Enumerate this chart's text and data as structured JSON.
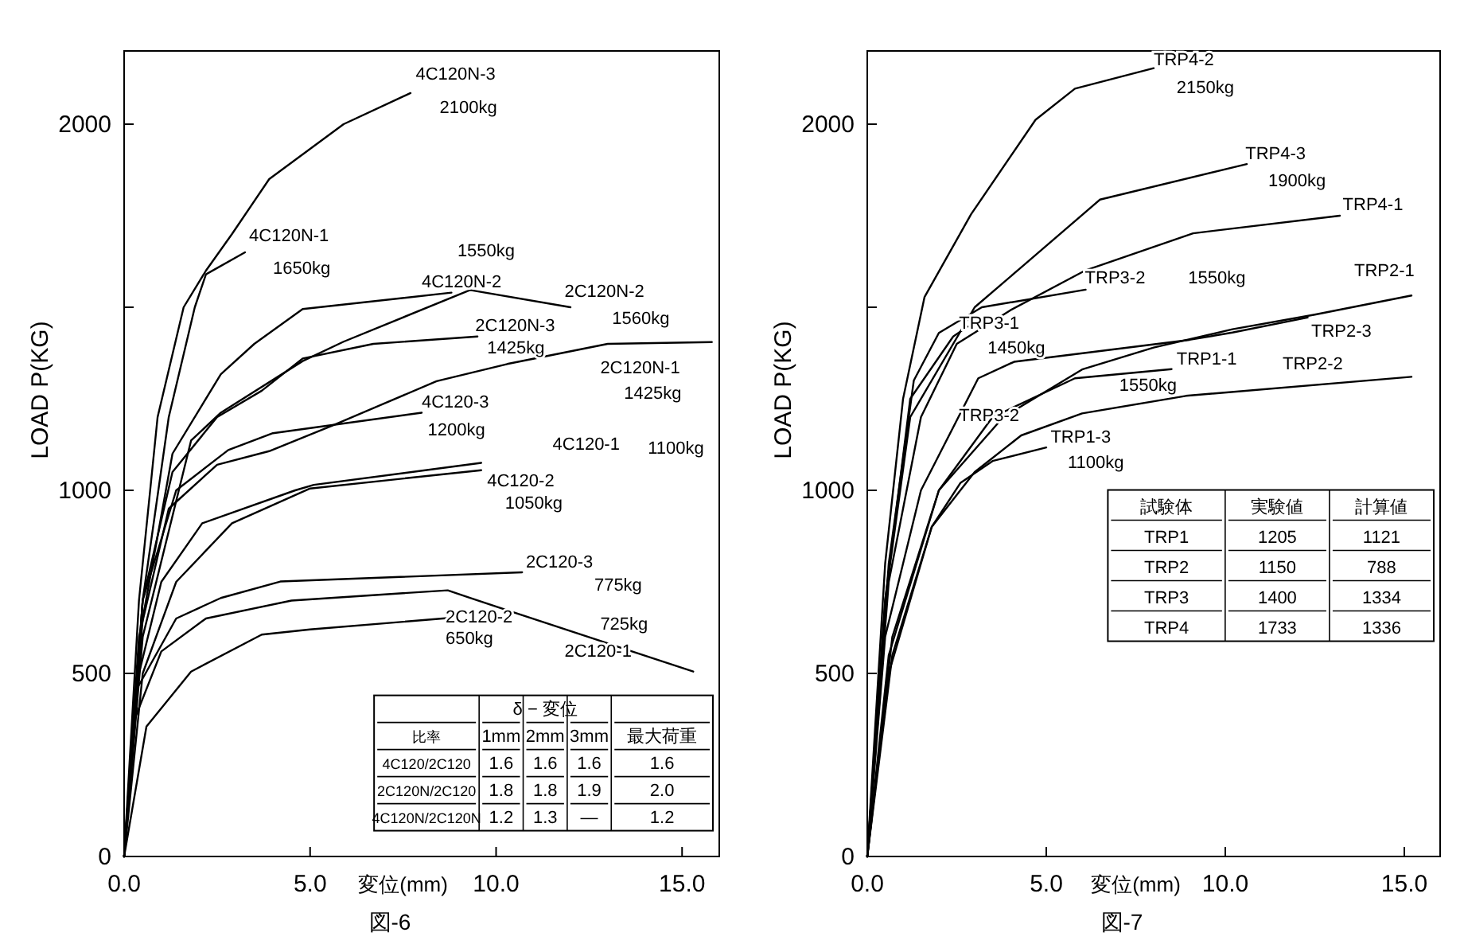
{
  "chart_data": [
    {
      "type": "line",
      "title": "図-6",
      "xlabel": "変位(mm)",
      "ylabel": "LOAD P(KG)",
      "xlim": [
        0,
        16
      ],
      "ylim": [
        0,
        2200
      ],
      "xticks": [
        {
          "value": 0,
          "label": "0.0"
        },
        {
          "value": 5,
          "label": "5.0"
        },
        {
          "value": 10,
          "label": "10.0"
        },
        {
          "value": 15,
          "label": "15.0"
        }
      ],
      "yticks": [
        0,
        500,
        1000,
        {
          "value": 1500,
          "label": null
        },
        2000
      ],
      "grid": false,
      "series": [
        {
          "color": "#000000",
          "x": [
            0,
            0.4,
            0.9,
            1.6,
            2.2,
            2.9,
            3.9,
            5.9,
            7.7
          ],
          "values": [
            0,
            700,
            1200,
            1500,
            1600,
            1700,
            1850,
            2000,
            2085
          ]
        },
        {
          "color": "#000000",
          "x": [
            0,
            0.5,
            1.2,
            1.9,
            2.2,
            3.25
          ],
          "values": [
            0,
            700,
            1200,
            1500,
            1590,
            1650
          ]
        },
        {
          "color": "#000000",
          "x": [
            0,
            0.5,
            1.3,
            2.6,
            3.5,
            4.8,
            8.8
          ],
          "values": [
            0,
            650,
            1100,
            1317,
            1400,
            1495,
            1540
          ]
        },
        {
          "color": "#000000",
          "x": [
            0,
            0.5,
            1.8,
            2.6,
            4.8,
            5.9,
            9.3,
            12.0
          ],
          "values": [
            0,
            600,
            1136,
            1212,
            1353,
            1406,
            1547,
            1500
          ]
        },
        {
          "color": "#000000",
          "x": [
            0,
            0.5,
            1.3,
            2.5,
            3.7,
            4.8,
            6.7,
            9.5
          ],
          "values": [
            0,
            700,
            1050,
            1200,
            1272,
            1360,
            1400,
            1420
          ]
        },
        {
          "color": "#000000",
          "x": [
            0,
            0.4,
            1.2,
            2.5,
            3.9,
            5.6,
            8.4,
            10.3,
            13.0,
            15.8
          ],
          "values": [
            0,
            600,
            950,
            1070,
            1107,
            1177,
            1298,
            1345,
            1400,
            1405
          ]
        },
        {
          "color": "#000000",
          "x": [
            0,
            0.5,
            1.4,
            2.8,
            4.0,
            8.0
          ],
          "values": [
            0,
            700,
            1000,
            1110,
            1156,
            1212
          ]
        },
        {
          "color": "#000000",
          "x": [
            0,
            0.4,
            1.0,
            2.1,
            4.6,
            5.1,
            9.6
          ],
          "values": [
            0,
            500,
            750,
            910,
            1000,
            1015,
            1075
          ]
        },
        {
          "color": "#000000",
          "x": [
            0,
            0.5,
            1.4,
            2.9,
            5.0,
            9.6
          ],
          "values": [
            0,
            500,
            750,
            910,
            1005,
            1055
          ]
        },
        {
          "color": "#000000",
          "x": [
            0,
            0.3,
            1.4,
            2.6,
            4.2,
            10.7
          ],
          "values": [
            0,
            450,
            650,
            706,
            751,
            776
          ]
        },
        {
          "color": "#000000",
          "x": [
            0,
            0.3,
            1.0,
            2.2,
            4.5,
            8.7,
            9.3,
            15.3
          ],
          "values": [
            0,
            380,
            560,
            650,
            699,
            727,
            706,
            505
          ]
        },
        {
          "color": "#000000",
          "x": [
            0,
            0.6,
            1.8,
            3.7,
            5.0,
            8.7
          ],
          "values": [
            0,
            355,
            505,
            606,
            620,
            651
          ]
        }
      ],
      "annotations": [
        "4C120N-3",
        "2100kg",
        "4C120N-1",
        "1650kg",
        "1550kg",
        "4C120N-2",
        "2C120N-2",
        "1560kg",
        "2C120N-3",
        "1425kg",
        "2C120N-1",
        "1425kg",
        "4C120-3",
        "1200kg",
        "4C120-1",
        "1100kg",
        "4C120-2",
        "1050kg",
        "2C120-3",
        "775kg",
        "2C120-2",
        "650kg",
        "725kg",
        "2C120-1",
        "δ − 変位",
        "比率",
        "1mm",
        "2mm",
        "3mm",
        "最大荷重",
        "4C120/2C120",
        "1.6",
        "1.6",
        "1.6",
        "1.6",
        "2C120N/2C120",
        "1.8",
        "1.8",
        "1.9",
        "2.0",
        "4C120N/2C120N",
        "1.2",
        "1.3",
        "—",
        "1.2"
      ]
    },
    {
      "type": "line",
      "title": "図-7",
      "xlabel": "変位(mm)",
      "ylabel": "LOAD P(KG)",
      "xlim": [
        0,
        16
      ],
      "ylim": [
        0,
        2200
      ],
      "xticks": [
        {
          "value": 0,
          "label": "0.0"
        },
        {
          "value": 5,
          "label": "5.0"
        },
        {
          "value": 10,
          "label": "10.0"
        },
        {
          "value": 15,
          "label": "15.0"
        }
      ],
      "yticks": [
        0,
        500,
        1000,
        {
          "value": 1500,
          "label": null
        },
        2000
      ],
      "grid": false,
      "series": [
        {
          "color": "#000000",
          "x": [
            0,
            0.5,
            1.0,
            1.6,
            2.9,
            4.7,
            5.8,
            8.0
          ],
          "values": [
            0,
            800,
            1250,
            1528,
            1754,
            2012,
            2097,
            2153
          ]
        },
        {
          "color": "#000000",
          "x": [
            0,
            0.5,
            1.2,
            3.0,
            4.3,
            6.5,
            10.6
          ],
          "values": [
            0,
            700,
            1200,
            1500,
            1609,
            1794,
            1891
          ]
        },
        {
          "color": "#000000",
          "x": [
            0,
            0.6,
            1.5,
            2.5,
            4.0,
            6.1,
            9.1,
            13.2
          ],
          "values": [
            0,
            750,
            1200,
            1400,
            1492,
            1601,
            1702,
            1750
          ]
        },
        {
          "color": "#000000",
          "x": [
            0,
            0.6,
            1.3,
            2.0,
            3.2,
            6.1
          ],
          "values": [
            0,
            800,
            1300,
            1430,
            1500,
            1548
          ]
        },
        {
          "color": "#000000",
          "x": [
            0,
            0.5,
            1.2,
            2.4,
            2.8
          ],
          "values": [
            0,
            700,
            1250,
            1420,
            1447
          ]
        },
        {
          "color": "#000000",
          "x": [
            0,
            0.5,
            1.5,
            3.1,
            4.1,
            9.0,
            10.2,
            12.3
          ],
          "values": [
            0,
            600,
            1000,
            1306,
            1351,
            1411,
            1431,
            1472
          ]
        },
        {
          "color": "#000000",
          "x": [
            0,
            0.6,
            2.0,
            3.8,
            6.0,
            8.0,
            10.2,
            12.5,
            15.2
          ],
          "values": [
            0,
            550,
            1000,
            1200,
            1330,
            1390,
            1440,
            1480,
            1532
          ]
        },
        {
          "color": "#000000",
          "x": [
            0,
            0.6,
            1.8,
            3.0,
            4.3,
            6.0,
            8.9,
            15.2
          ],
          "values": [
            0,
            500,
            900,
            1050,
            1150,
            1210,
            1258,
            1310
          ]
        },
        {
          "color": "#000000",
          "x": [
            0,
            0.7,
            2.0,
            3.5,
            5.8,
            8.5
          ],
          "values": [
            0,
            600,
            1000,
            1200,
            1306,
            1331
          ]
        },
        {
          "color": "#000000",
          "x": [
            0,
            0.7,
            1.8,
            2.6,
            3.5,
            5.0
          ],
          "values": [
            0,
            550,
            900,
            1020,
            1080,
            1117
          ]
        }
      ],
      "annotations": [
        "TRP4-2",
        "2150kg",
        "TRP4-3",
        "1900kg",
        "TRP4-1",
        "TRP3-2",
        "1550kg",
        "TRP3-1",
        "1450kg",
        "TRP2-1",
        "TRP2-3",
        "TRP2-2",
        "TRP1-1",
        "1550kg",
        "TRP3-2",
        "TRP1-3",
        "1100kg",
        "試験体",
        "実験値",
        "計算値",
        "TRP1",
        "1205",
        "1121",
        "TRP2",
        "1150",
        "788",
        "TRP3",
        "1400",
        "1334",
        "TRP4",
        "1733",
        "1336"
      ]
    }
  ]
}
